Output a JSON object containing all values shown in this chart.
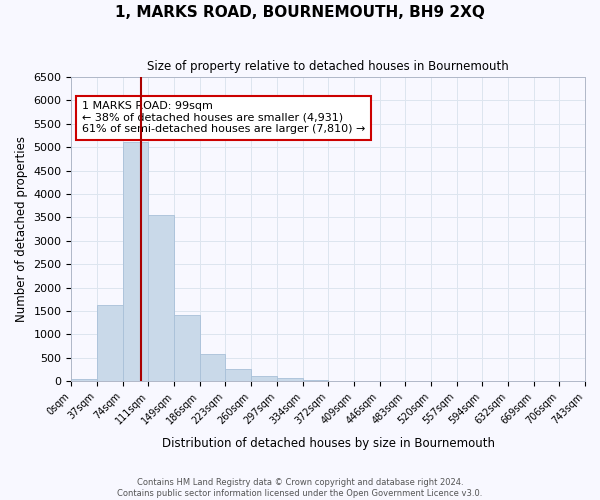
{
  "title": "1, MARKS ROAD, BOURNEMOUTH, BH9 2XQ",
  "subtitle": "Size of property relative to detached houses in Bournemouth",
  "xlabel": "Distribution of detached houses by size in Bournemouth",
  "ylabel": "Number of detached properties",
  "bin_labels": [
    "0sqm",
    "37sqm",
    "74sqm",
    "111sqm",
    "149sqm",
    "186sqm",
    "223sqm",
    "260sqm",
    "297sqm",
    "334sqm",
    "372sqm",
    "409sqm",
    "446sqm",
    "483sqm",
    "520sqm",
    "557sqm",
    "594sqm",
    "632sqm",
    "669sqm",
    "706sqm",
    "743sqm"
  ],
  "bar_heights": [
    50,
    1620,
    5100,
    3560,
    1420,
    580,
    270,
    120,
    70,
    30,
    10,
    5,
    3,
    0,
    0,
    0,
    0,
    0,
    0,
    0
  ],
  "bar_color": "#c9d9e9",
  "bar_edge_color": "#a8c0d8",
  "property_bin": 2.7,
  "property_line_color": "#aa0000",
  "ylim": [
    0,
    6500
  ],
  "yticks": [
    0,
    500,
    1000,
    1500,
    2000,
    2500,
    3000,
    3500,
    4000,
    4500,
    5000,
    5500,
    6000,
    6500
  ],
  "annotation_text": "1 MARKS ROAD: 99sqm\n← 38% of detached houses are smaller (4,931)\n61% of semi-detached houses are larger (7,810) →",
  "annotation_box_color": "#ffffff",
  "annotation_box_edge": "#cc0000",
  "grid_color": "#dde5ef",
  "background_color": "#f8f8ff",
  "footer_line1": "Contains HM Land Registry data © Crown copyright and database right 2024.",
  "footer_line2": "Contains public sector information licensed under the Open Government Licence v3.0."
}
